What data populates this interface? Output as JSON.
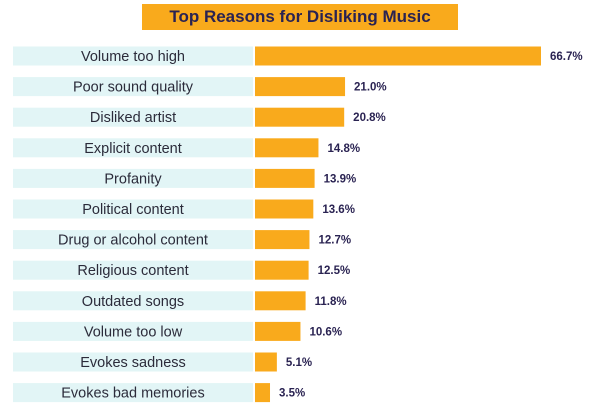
{
  "chart_data": {
    "type": "bar",
    "orientation": "horizontal",
    "title": "Top Reasons for Disliking Music",
    "categories": [
      "Volume too high",
      "Poor sound quality",
      "Disliked artist",
      "Explicit content",
      "Profanity",
      "Political content",
      "Drug or alcohol content",
      "Religious content",
      "Outdated songs",
      "Volume too low",
      "Evokes sadness",
      "Evokes bad memories"
    ],
    "values": [
      66.7,
      21.0,
      20.8,
      14.8,
      13.9,
      13.6,
      12.7,
      12.5,
      11.8,
      10.6,
      5.1,
      3.5
    ],
    "value_labels": [
      "66.7%",
      "21.0%",
      "20.8%",
      "14.8%",
      "13.9%",
      "13.6%",
      "12.7%",
      "12.5%",
      "11.8%",
      "10.6%",
      "5.1%",
      "3.5%"
    ],
    "xlim": [
      0,
      66.7
    ],
    "grid": false,
    "colors": {
      "bar": "#F9AA1C",
      "label_band": "#E2F5F6",
      "title_band": "#F9AA1C",
      "value_text": "#2a2352"
    }
  }
}
